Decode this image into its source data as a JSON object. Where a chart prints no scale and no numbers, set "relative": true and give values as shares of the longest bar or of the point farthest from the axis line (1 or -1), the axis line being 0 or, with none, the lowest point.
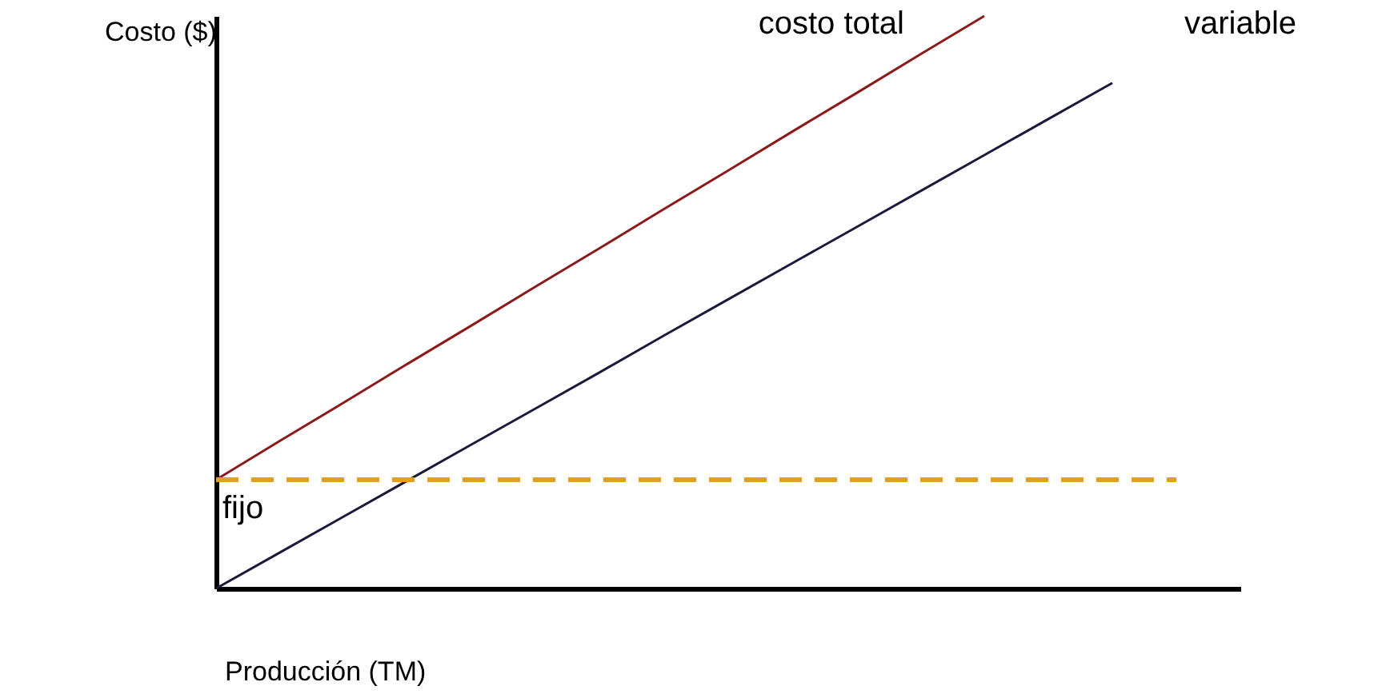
{
  "chart_data": {
    "type": "line",
    "relative": true,
    "xlabel": "Producción (TM)",
    "ylabel": "Costo ($)",
    "grid": false,
    "marker": "none",
    "categories": [
      null,
      null,
      null,
      null,
      null,
      null,
      null,
      null,
      null,
      null,
      null,
      null,
      null,
      null,
      null,
      null
    ],
    "series": [
      {
        "name": "costo total",
        "color": "#8b1a1a",
        "values": [
          0.19,
          0.258,
          0.325,
          0.393,
          0.46,
          0.528,
          0.595,
          0.663,
          0.73,
          0.798,
          0.865,
          0.933,
          1.0,
          null,
          null,
          null
        ],
        "line_style": "solid"
      },
      {
        "name": "variable",
        "color": "#1a1a3a",
        "values": [
          0,
          0.063,
          0.126,
          0.189,
          0.252,
          0.315,
          0.378,
          0.442,
          0.505,
          0.568,
          0.631,
          0.694,
          0.757,
          0.82,
          0.883,
          null
        ],
        "line_style": "solid"
      },
      {
        "name": "fijo",
        "color": "#e0a020",
        "values": [
          0.19,
          0.19,
          0.19,
          0.19,
          0.19,
          0.19,
          0.19,
          0.19,
          0.19,
          0.19,
          0.19,
          0.19,
          0.19,
          0.19,
          0.19,
          0.19
        ],
        "line_style": "dashed"
      }
    ]
  }
}
